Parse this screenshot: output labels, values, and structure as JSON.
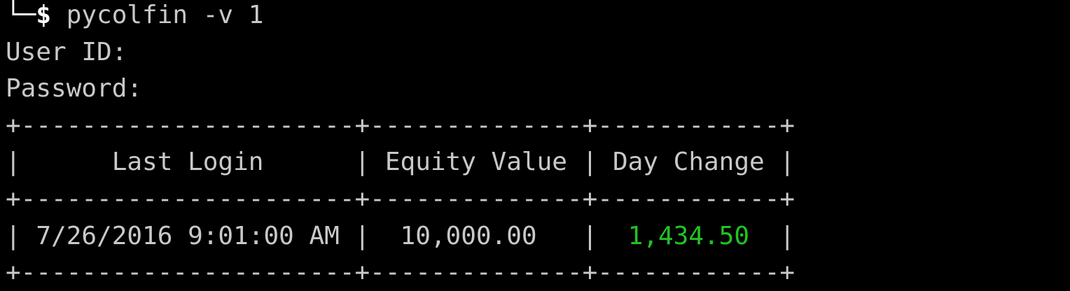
{
  "terminal": {
    "prompt": {
      "symbol": "└─$",
      "command": "pycolfin -v 1"
    },
    "inputs": [
      "User ID:",
      "Password:"
    ],
    "table": {
      "border": "+----------------------+--------------+------------+",
      "separator": "|",
      "columns": [
        "Last Login",
        "Equity Value",
        "Day Change"
      ],
      "rows": [
        [
          "7/26/2016 9:01:00 AM",
          "10,000.00",
          "1,434.50"
        ]
      ]
    }
  }
}
